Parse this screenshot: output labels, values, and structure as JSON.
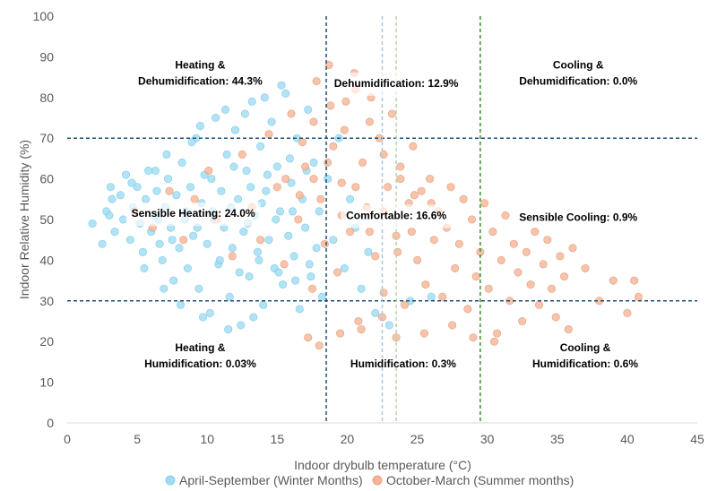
{
  "chart_data": {
    "type": "scatter",
    "title": "",
    "xlabel": "Indoor drybulb temperature (°C)",
    "ylabel": "Indoor Relative Humidity (%)",
    "xlim": [
      0,
      45
    ],
    "ylim": [
      0,
      100
    ],
    "x_ticks": [
      "0",
      "5",
      "10",
      "15",
      "20",
      "25",
      "30",
      "35",
      "40",
      "45"
    ],
    "y_ticks": [
      "0",
      "10",
      "20",
      "30",
      "40",
      "50",
      "60",
      "70",
      "80",
      "90",
      "100"
    ],
    "grid": false,
    "legend_position": "bottom",
    "colors": {
      "winter": "#9fdcf3",
      "winter_edge": "#7cc8e8",
      "summer": "#f4b596",
      "summer_edge": "#e89a78",
      "ref_dark_blue": "#1f4e79",
      "ref_green": "#3a8f2e",
      "ref_light_blue": "#a9c8e0",
      "ref_light_green": "#b5d6a8"
    },
    "series": [
      {
        "name": "April-September (Winter Months)",
        "color": "#9fdcf3",
        "points": [
          [
            1.8,
            49
          ],
          [
            2.5,
            44
          ],
          [
            2.8,
            52
          ],
          [
            3.1,
            58
          ],
          [
            3.0,
            51
          ],
          [
            3.4,
            47
          ],
          [
            3.8,
            56
          ],
          [
            4.0,
            50
          ],
          [
            4.2,
            61
          ],
          [
            4.5,
            45
          ],
          [
            4.7,
            53
          ],
          [
            5.0,
            58
          ],
          [
            5.2,
            49
          ],
          [
            5.4,
            42
          ],
          [
            5.6,
            55
          ],
          [
            5.8,
            62
          ],
          [
            6.0,
            47
          ],
          [
            6.2,
            51
          ],
          [
            6.4,
            57
          ],
          [
            6.6,
            44
          ],
          [
            6.8,
            40
          ],
          [
            7.0,
            53
          ],
          [
            7.2,
            60
          ],
          [
            7.4,
            48
          ],
          [
            7.6,
            35
          ],
          [
            7.8,
            56
          ],
          [
            8.0,
            43
          ],
          [
            8.2,
            64
          ],
          [
            8.4,
            50
          ],
          [
            8.6,
            38
          ],
          [
            8.8,
            58
          ],
          [
            9.0,
            46
          ],
          [
            9.2,
            70
          ],
          [
            9.4,
            33
          ],
          [
            9.6,
            54
          ],
          [
            9.8,
            61
          ],
          [
            10.0,
            44
          ],
          [
            10.2,
            27
          ],
          [
            10.4,
            52
          ],
          [
            10.6,
            75
          ],
          [
            10.8,
            39
          ],
          [
            11.0,
            57
          ],
          [
            11.2,
            48
          ],
          [
            11.4,
            66
          ],
          [
            11.6,
            31
          ],
          [
            11.8,
            43
          ],
          [
            12.0,
            72
          ],
          [
            12.2,
            55
          ],
          [
            12.4,
            24
          ],
          [
            12.6,
            47
          ],
          [
            12.8,
            62
          ],
          [
            13.0,
            36
          ],
          [
            13.2,
            79
          ],
          [
            13.4,
            51
          ],
          [
            13.6,
            42
          ],
          [
            13.8,
            68
          ],
          [
            14.0,
            29
          ],
          [
            14.2,
            57
          ],
          [
            14.4,
            45
          ],
          [
            14.6,
            74
          ],
          [
            14.8,
            38
          ],
          [
            15.0,
            63
          ],
          [
            15.2,
            52
          ],
          [
            15.4,
            34
          ],
          [
            15.6,
            81
          ],
          [
            15.8,
            46
          ],
          [
            16.0,
            59
          ],
          [
            16.2,
            41
          ],
          [
            16.4,
            70
          ],
          [
            16.6,
            28
          ],
          [
            16.8,
            55
          ],
          [
            17.0,
            48
          ],
          [
            17.2,
            77
          ],
          [
            17.4,
            36
          ],
          [
            17.6,
            64
          ],
          [
            17.8,
            43
          ],
          [
            18.0,
            52
          ],
          [
            18.2,
            31
          ],
          [
            18.6,
            60
          ],
          [
            19.0,
            45
          ],
          [
            19.4,
            70
          ],
          [
            19.8,
            38
          ],
          [
            20.2,
            55
          ],
          [
            20.6,
            48
          ],
          [
            21.0,
            33
          ],
          [
            21.5,
            42
          ],
          [
            22.0,
            27
          ],
          [
            23.0,
            24
          ],
          [
            24.5,
            30
          ],
          [
            26.0,
            31
          ],
          [
            3.2,
            55
          ],
          [
            4.6,
            59
          ],
          [
            6.3,
            62
          ],
          [
            7.1,
            66
          ],
          [
            8.9,
            69
          ],
          [
            9.5,
            73
          ],
          [
            11.3,
            77
          ],
          [
            12.7,
            76
          ],
          [
            14.1,
            80
          ],
          [
            15.3,
            83
          ],
          [
            5.5,
            38
          ],
          [
            6.9,
            33
          ],
          [
            8.1,
            29
          ],
          [
            9.7,
            26
          ],
          [
            11.5,
            23
          ],
          [
            13.3,
            26
          ],
          [
            6.5,
            50
          ],
          [
            7.5,
            45
          ],
          [
            8.5,
            52
          ],
          [
            9.3,
            48
          ],
          [
            10.5,
            50
          ],
          [
            11.7,
            53
          ],
          [
            12.9,
            49
          ],
          [
            13.9,
            54
          ],
          [
            14.9,
            50
          ],
          [
            16.1,
            52
          ],
          [
            10.3,
            60
          ],
          [
            11.9,
            63
          ],
          [
            13.1,
            58
          ],
          [
            14.3,
            61
          ],
          [
            15.9,
            65
          ],
          [
            17.1,
            62
          ],
          [
            10.9,
            40
          ],
          [
            12.3,
            37
          ],
          [
            13.7,
            40
          ],
          [
            15.1,
            37
          ],
          [
            16.3,
            35
          ],
          [
            17.3,
            39
          ]
        ]
      },
      {
        "name": "October-March (Summer months)",
        "color": "#f4b596",
        "points": [
          [
            4.8,
            52
          ],
          [
            6.1,
            48
          ],
          [
            7.3,
            57
          ],
          [
            8.3,
            45
          ],
          [
            9.1,
            55
          ],
          [
            10.1,
            62
          ],
          [
            10.7,
            50
          ],
          [
            11.8,
            41
          ],
          [
            12.5,
            66
          ],
          [
            13.2,
            53
          ],
          [
            13.8,
            45
          ],
          [
            14.4,
            71
          ],
          [
            15.0,
            58
          ],
          [
            15.5,
            39
          ],
          [
            16.0,
            76
          ],
          [
            16.5,
            50
          ],
          [
            17.0,
            63
          ],
          [
            17.5,
            33
          ],
          [
            17.8,
            84
          ],
          [
            18.1,
            55
          ],
          [
            18.4,
            44
          ],
          [
            18.7,
            88
          ],
          [
            19.0,
            68
          ],
          [
            19.3,
            37
          ],
          [
            19.6,
            59
          ],
          [
            19.9,
            79
          ],
          [
            20.2,
            47
          ],
          [
            20.5,
            86
          ],
          [
            20.8,
            25
          ],
          [
            21.1,
            64
          ],
          [
            21.4,
            53
          ],
          [
            21.7,
            80
          ],
          [
            22.0,
            41
          ],
          [
            22.3,
            70
          ],
          [
            22.6,
            32
          ],
          [
            22.9,
            58
          ],
          [
            23.2,
            76
          ],
          [
            23.5,
            46
          ],
          [
            23.8,
            63
          ],
          [
            24.1,
            29
          ],
          [
            24.4,
            54
          ],
          [
            24.7,
            68
          ],
          [
            25.0,
            40
          ],
          [
            25.3,
            57
          ],
          [
            25.6,
            34
          ],
          [
            25.9,
            60
          ],
          [
            26.2,
            45
          ],
          [
            26.5,
            52
          ],
          [
            26.8,
            31
          ],
          [
            27.1,
            48
          ],
          [
            27.4,
            58
          ],
          [
            27.7,
            38
          ],
          [
            28.0,
            44
          ],
          [
            28.3,
            55
          ],
          [
            28.6,
            28
          ],
          [
            28.9,
            50
          ],
          [
            29.2,
            36
          ],
          [
            29.5,
            42
          ],
          [
            29.8,
            54
          ],
          [
            30.1,
            33
          ],
          [
            30.4,
            47
          ],
          [
            30.7,
            22
          ],
          [
            31.0,
            40
          ],
          [
            31.3,
            51
          ],
          [
            31.6,
            30
          ],
          [
            31.9,
            44
          ],
          [
            32.2,
            37
          ],
          [
            32.5,
            25
          ],
          [
            32.8,
            42
          ],
          [
            33.1,
            34
          ],
          [
            33.4,
            47
          ],
          [
            33.7,
            29
          ],
          [
            34.0,
            39
          ],
          [
            34.3,
            45
          ],
          [
            34.6,
            33
          ],
          [
            34.9,
            26
          ],
          [
            35.2,
            41
          ],
          [
            35.5,
            36
          ],
          [
            35.8,
            23
          ],
          [
            36.1,
            43
          ],
          [
            37.0,
            38
          ],
          [
            38.0,
            30
          ],
          [
            39.0,
            35
          ],
          [
            40.0,
            27
          ],
          [
            40.5,
            35
          ],
          [
            40.8,
            31
          ],
          [
            17.2,
            21
          ],
          [
            18.0,
            19
          ],
          [
            19.5,
            22
          ],
          [
            21.0,
            23
          ],
          [
            22.5,
            26
          ],
          [
            23.5,
            21
          ],
          [
            25.5,
            22
          ],
          [
            27.5,
            24
          ],
          [
            29.0,
            21
          ],
          [
            30.5,
            20
          ],
          [
            16.8,
            69
          ],
          [
            17.6,
            74
          ],
          [
            18.8,
            78
          ],
          [
            19.8,
            72
          ],
          [
            20.6,
            82
          ],
          [
            21.6,
            74
          ],
          [
            22.6,
            66
          ],
          [
            23.8,
            60
          ],
          [
            24.8,
            56
          ],
          [
            26.0,
            54
          ],
          [
            15.6,
            60
          ],
          [
            16.6,
            56
          ],
          [
            17.6,
            60
          ],
          [
            18.6,
            64
          ],
          [
            19.6,
            51
          ],
          [
            20.6,
            58
          ],
          [
            21.6,
            47
          ],
          [
            22.6,
            52
          ],
          [
            23.6,
            42
          ],
          [
            24.6,
            47
          ]
        ]
      }
    ],
    "reference_lines": [
      {
        "orientation": "horizontal",
        "value": 70,
        "color": "#1f4e79"
      },
      {
        "orientation": "horizontal",
        "value": 30,
        "color": "#1f4e79"
      },
      {
        "orientation": "vertical",
        "value": 18.5,
        "color": "#1f4e79"
      },
      {
        "orientation": "vertical",
        "value": 29.5,
        "color": "#3a8f2e"
      },
      {
        "orientation": "vertical",
        "value": 22.5,
        "color": "#a9c8e0"
      },
      {
        "orientation": "vertical",
        "value": 23.5,
        "color": "#b5d6a8"
      }
    ],
    "annotations": [
      {
        "id": "heating-dehumid",
        "lines": [
          "Heating &",
          "Dehumidification: 44.3%"
        ],
        "x": 9.5,
        "y": 86,
        "box": false
      },
      {
        "id": "dehumid",
        "lines": [
          "Dehumidification: 12.9%"
        ],
        "x": 23.5,
        "y": 83.5,
        "box": true
      },
      {
        "id": "cooling-dehumid",
        "lines": [
          "Cooling &",
          "Dehumidification: 0.0%"
        ],
        "x": 36.5,
        "y": 86,
        "box": false
      },
      {
        "id": "sensible-heating",
        "lines": [
          "Sensible Heating: 24.0%"
        ],
        "x": 9.0,
        "y": 51.5,
        "box": true
      },
      {
        "id": "comfortable",
        "lines": [
          "Comfortable: 16.6%"
        ],
        "x": 23.5,
        "y": 51,
        "box": true
      },
      {
        "id": "sensible-cooling",
        "lines": [
          "Sensible Cooling: 0.9%"
        ],
        "x": 36.5,
        "y": 50.5,
        "box": false
      },
      {
        "id": "heating-humid",
        "lines": [
          "Heating &",
          "Humidification: 0.03%"
        ],
        "x": 9.5,
        "y": 16.5,
        "box": false
      },
      {
        "id": "humid",
        "lines": [
          "Humidification: 0.3%"
        ],
        "x": 24.0,
        "y": 14.5,
        "box": false
      },
      {
        "id": "cooling-humid",
        "lines": [
          "Cooling &",
          "Humidification: 0.6%"
        ],
        "x": 37.0,
        "y": 16.5,
        "box": false
      }
    ]
  }
}
